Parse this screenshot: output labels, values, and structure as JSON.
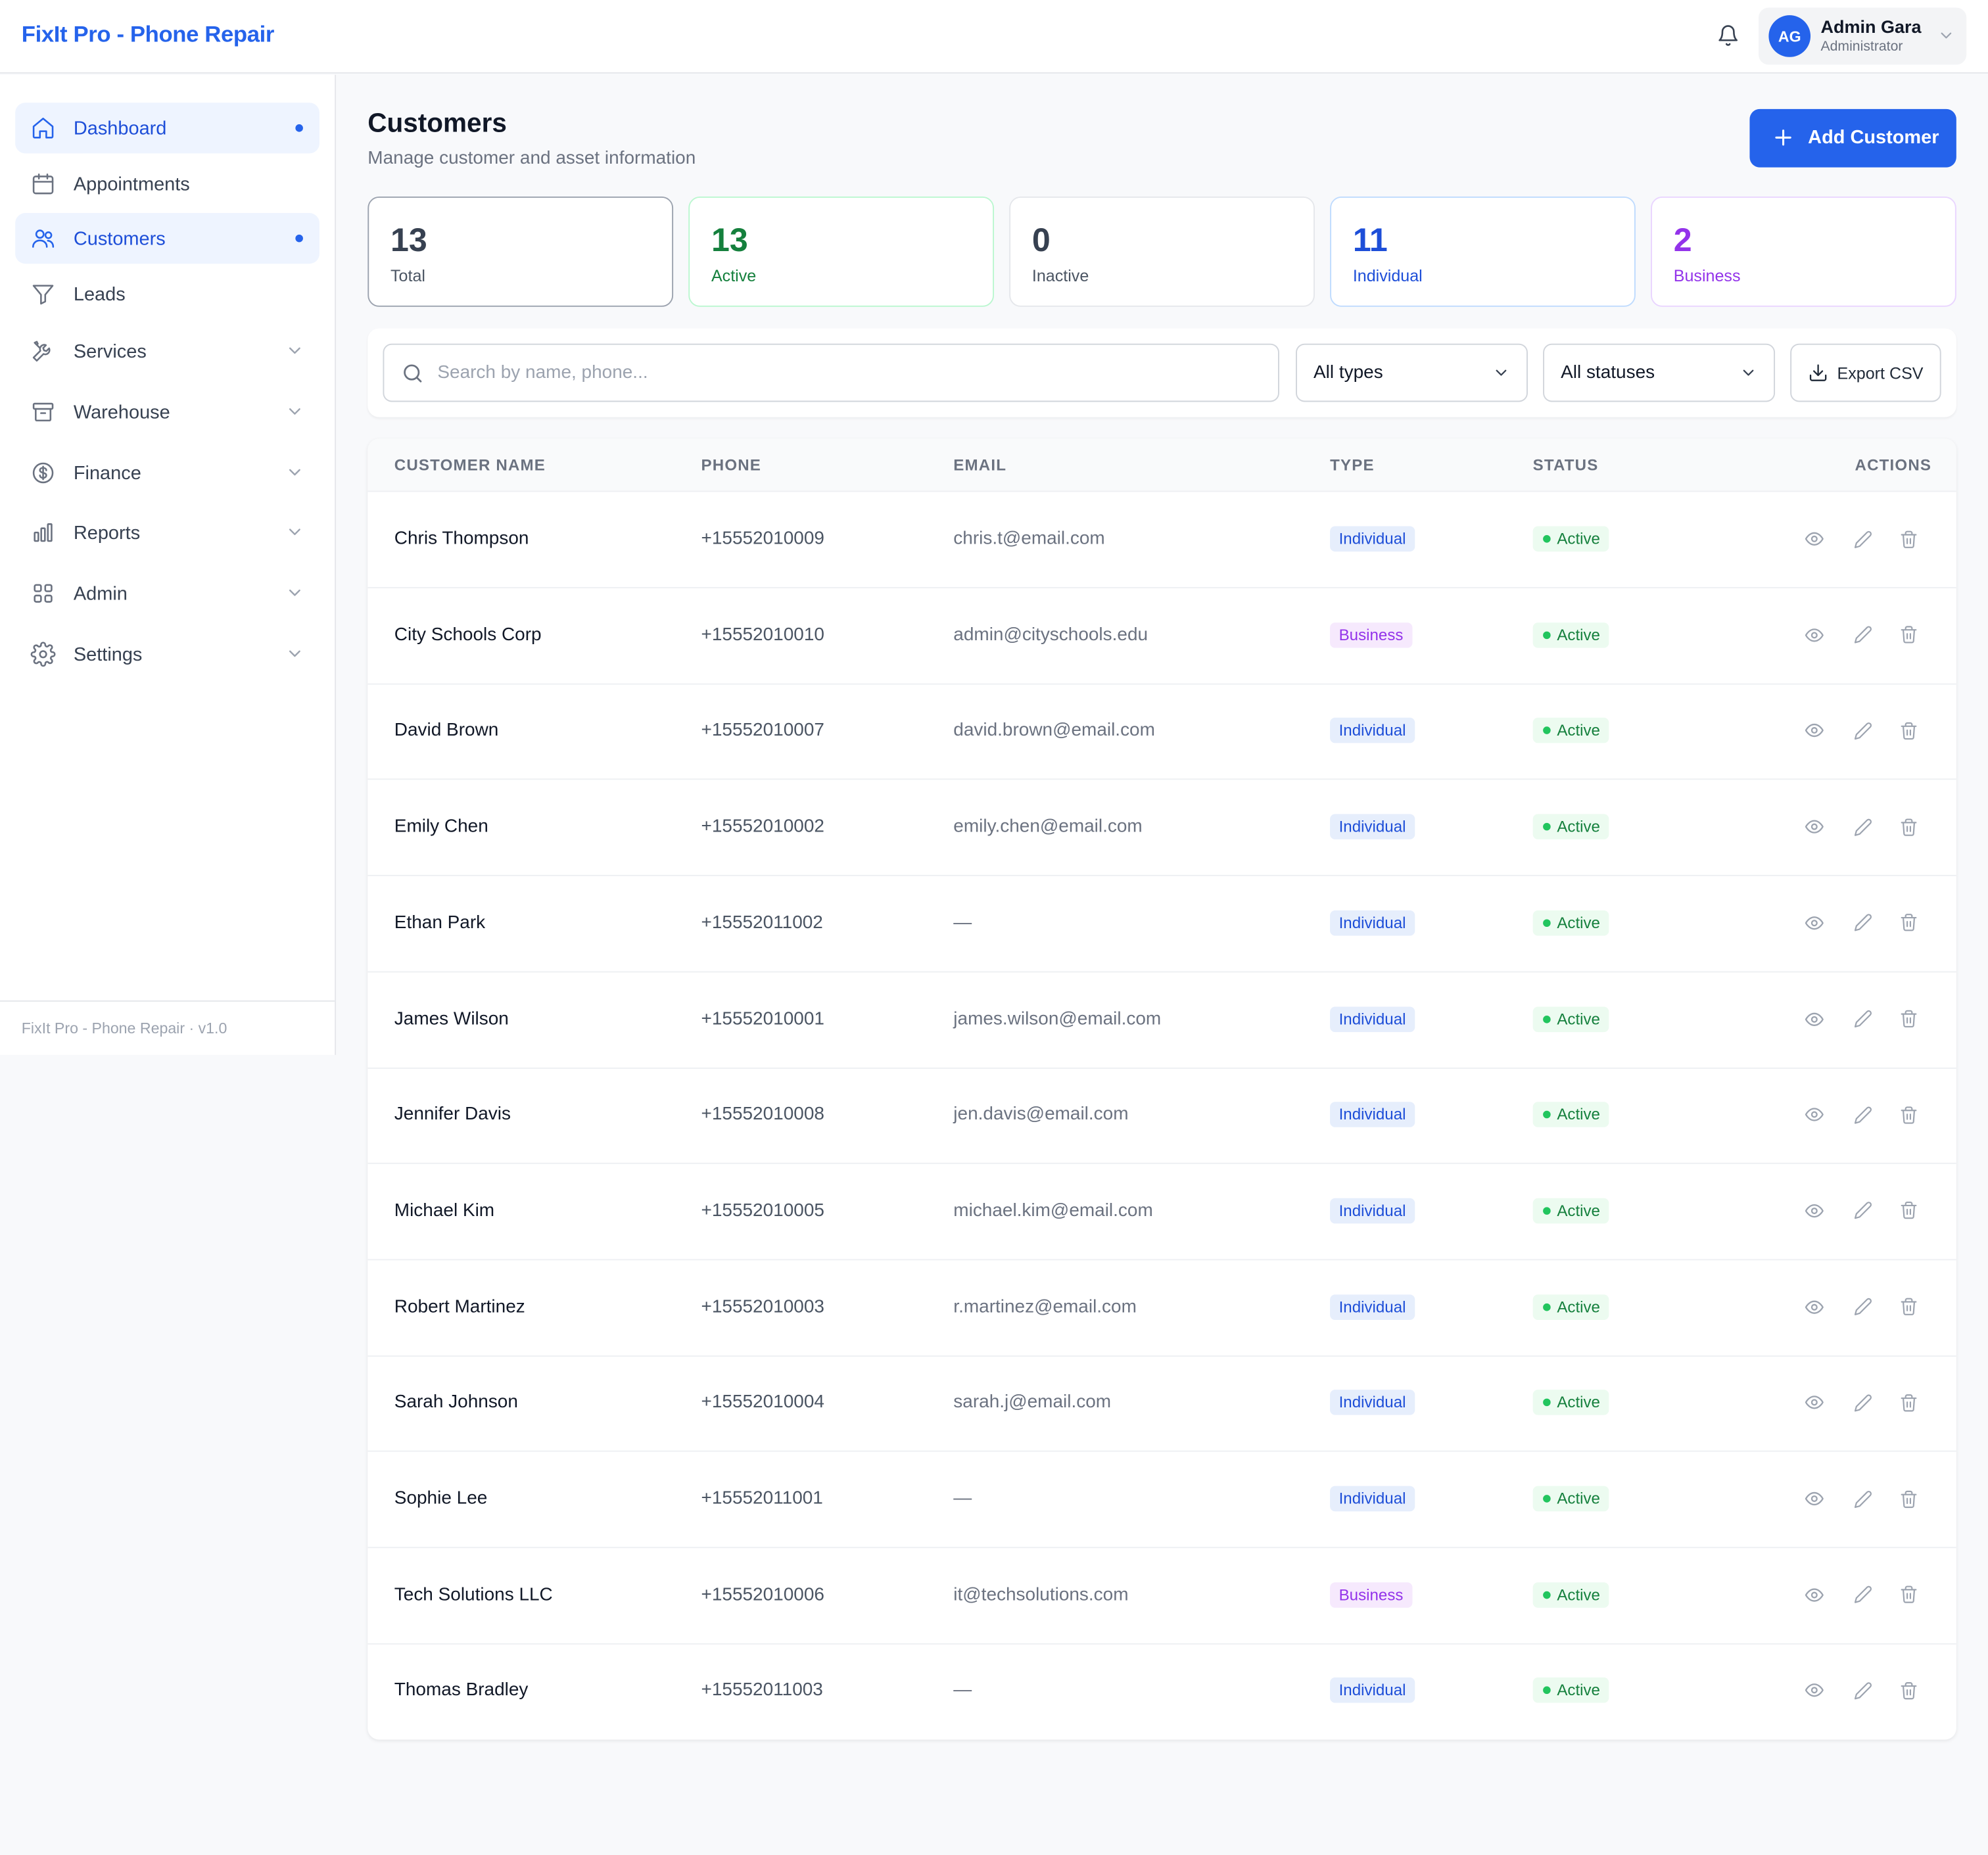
{
  "app": {
    "brand": "FixIt Pro - Phone Repair"
  },
  "user": {
    "initials": "AG",
    "name": "Admin Gara",
    "role": "Administrator"
  },
  "sidebar": {
    "items": [
      {
        "label": "Dashboard",
        "icon": "home-icon",
        "active": true,
        "dot": true
      },
      {
        "label": "Appointments",
        "icon": "calendar-icon",
        "active": false
      },
      {
        "label": "Customers",
        "icon": "users-icon",
        "active": true,
        "dot": true
      },
      {
        "label": "Leads",
        "icon": "filter-icon",
        "active": false
      },
      {
        "label": "Services",
        "icon": "tools-icon",
        "active": false,
        "expandable": true
      },
      {
        "label": "Warehouse",
        "icon": "archive-icon",
        "active": false,
        "expandable": true
      },
      {
        "label": "Finance",
        "icon": "dollar-icon",
        "active": false,
        "expandable": true
      },
      {
        "label": "Reports",
        "icon": "bar-chart-icon",
        "active": false,
        "expandable": true
      },
      {
        "label": "Admin",
        "icon": "grid-icon",
        "active": false,
        "expandable": true
      },
      {
        "label": "Settings",
        "icon": "gear-icon",
        "active": false,
        "expandable": true
      }
    ],
    "footer": "FixIt Pro - Phone Repair · v1.0"
  },
  "page": {
    "title": "Customers",
    "subtitle": "Manage customer and asset information",
    "add_button": "Add Customer"
  },
  "stats": [
    {
      "value": "13",
      "label": "Total",
      "color": "#374151",
      "border": "#9ca3af"
    },
    {
      "value": "13",
      "label": "Active",
      "color": "#15803d",
      "border": "#bbf7d0"
    },
    {
      "value": "0",
      "label": "Inactive",
      "color": "#374151",
      "border": "#e5e7eb"
    },
    {
      "value": "11",
      "label": "Individual",
      "color": "#1d4ed8",
      "border": "#bfdbfe"
    },
    {
      "value": "2",
      "label": "Business",
      "color": "#9333ea",
      "border": "#e9d5ff"
    }
  ],
  "filters": {
    "search_placeholder": "Search by name, phone...",
    "type_value": "All types",
    "status_value": "All statuses",
    "export_label": "Export CSV"
  },
  "table": {
    "columns": [
      "CUSTOMER NAME",
      "PHONE",
      "EMAIL",
      "TYPE",
      "STATUS",
      "ACTIONS"
    ],
    "rows": [
      {
        "name": "Chris Thompson",
        "phone": "+15552010009",
        "email": "chris.t@email.com",
        "type": "Individual",
        "status": "Active"
      },
      {
        "name": "City Schools Corp",
        "phone": "+15552010010",
        "email": "admin@cityschools.edu",
        "type": "Business",
        "status": "Active"
      },
      {
        "name": "David Brown",
        "phone": "+15552010007",
        "email": "david.brown@email.com",
        "type": "Individual",
        "status": "Active"
      },
      {
        "name": "Emily Chen",
        "phone": "+15552010002",
        "email": "emily.chen@email.com",
        "type": "Individual",
        "status": "Active"
      },
      {
        "name": "Ethan Park",
        "phone": "+15552011002",
        "email": "—",
        "type": "Individual",
        "status": "Active"
      },
      {
        "name": "James Wilson",
        "phone": "+15552010001",
        "email": "james.wilson@email.com",
        "type": "Individual",
        "status": "Active"
      },
      {
        "name": "Jennifer Davis",
        "phone": "+15552010008",
        "email": "jen.davis@email.com",
        "type": "Individual",
        "status": "Active"
      },
      {
        "name": "Michael Kim",
        "phone": "+15552010005",
        "email": "michael.kim@email.com",
        "type": "Individual",
        "status": "Active"
      },
      {
        "name": "Robert Martinez",
        "phone": "+15552010003",
        "email": "r.martinez@email.com",
        "type": "Individual",
        "status": "Active"
      },
      {
        "name": "Sarah Johnson",
        "phone": "+15552010004",
        "email": "sarah.j@email.com",
        "type": "Individual",
        "status": "Active"
      },
      {
        "name": "Sophie Lee",
        "phone": "+15552011001",
        "email": "—",
        "type": "Individual",
        "status": "Active"
      },
      {
        "name": "Tech Solutions LLC",
        "phone": "+15552010006",
        "email": "it@techsolutions.com",
        "type": "Business",
        "status": "Active"
      },
      {
        "name": "Thomas Bradley",
        "phone": "+15552011003",
        "email": "—",
        "type": "Individual",
        "status": "Active"
      }
    ]
  }
}
